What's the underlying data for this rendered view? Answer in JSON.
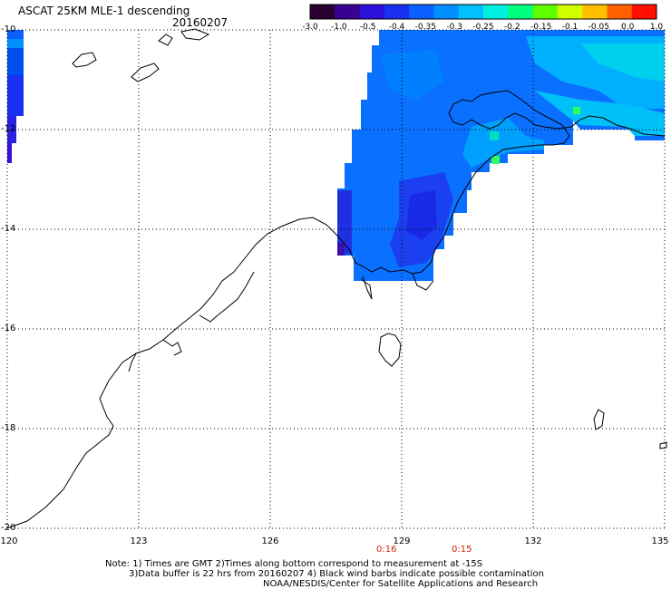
{
  "header": {
    "title": "ASCAT 25KM MLE-1 descending",
    "date": "20160207"
  },
  "colorbar": {
    "labels": [
      "-3.0",
      "-1.0",
      "-0.5",
      "-0.4",
      "-0.35",
      "-0.3",
      "-0.25",
      "-0.2",
      "-0.15",
      "-0.1",
      "-0.05",
      "0.0",
      "1.0"
    ],
    "colors": [
      "#2a0030",
      "#3a0090",
      "#2a10d8",
      "#1a30f0",
      "#0a60ff",
      "#0090ff",
      "#00c0ff",
      "#00f0e0",
      "#00ff80",
      "#60ff00",
      "#d0ff00",
      "#ffc000",
      "#ff6000",
      "#ff1000"
    ]
  },
  "axes": {
    "lat_labels": [
      "-10",
      "-12",
      "-14",
      "-16",
      "-18",
      "-20"
    ],
    "lon_labels": [
      "120",
      "123",
      "126",
      "129",
      "132",
      "135"
    ]
  },
  "times": [
    "0:16",
    "0:15"
  ],
  "notes": [
    "Note: 1) Times are GMT 2)Times along bottom correspond to measurement at -15S",
    "3)Data buffer is 22 hrs from 20160207 4) Black wind barbs indicate possible contamination",
    "NOAA/NESDIS/Center for Satellite Applications and Research"
  ]
}
